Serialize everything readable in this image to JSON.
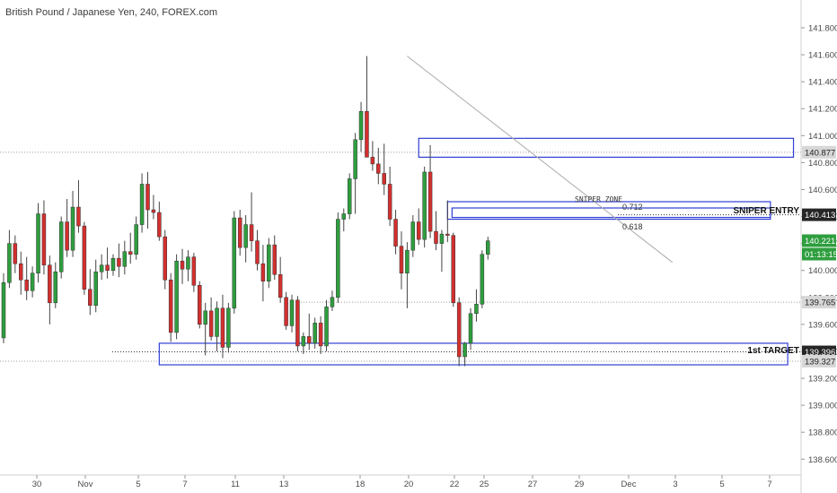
{
  "header": {
    "symbol_title": "British Pound / Japanese Yen, 240, FOREX.com"
  },
  "colors": {
    "up": "#26a69a",
    "up_body": "#2e9e3e",
    "down": "#d32f2f",
    "wick": "#555555",
    "zone": "#2f3fd6",
    "trendline": "#aaaaaa",
    "label_dark": "#262626",
    "label_grey": "#9e9e9e",
    "label_green": "#2e9e3e"
  },
  "chart_data": {
    "type": "candlestick",
    "title": "British Pound / Japanese Yen, 240, FOREX.com",
    "timeframe": "240",
    "ylim": [
      138.5,
      142.1
    ],
    "y_ticks": [
      "141.800",
      "141.600",
      "141.400",
      "141.200",
      "141.000",
      "140.800",
      "140.600",
      "140.400",
      "140.200",
      "140.000",
      "139.800",
      "139.600",
      "139.400",
      "139.200",
      "139.000",
      "138.800",
      "138.600"
    ],
    "x_ticks": [
      "30",
      "Nov",
      "5",
      "7",
      "11",
      "13",
      "18",
      "20",
      "22",
      "25",
      "27",
      "29",
      "Dec",
      "3",
      "5",
      "7"
    ],
    "price_labels": [
      {
        "text": "140.877",
        "value": 140.877,
        "style": "grey"
      },
      {
        "text": "140.413",
        "value": 140.413,
        "style": "dark"
      },
      {
        "text": "140.221",
        "value": 140.221,
        "style": "green"
      },
      {
        "text": "01:13:15",
        "value": 140.15,
        "style": "green"
      },
      {
        "text": "139.765",
        "value": 139.765,
        "style": "grey"
      },
      {
        "text": "139.396",
        "value": 139.396,
        "style": "dark"
      },
      {
        "text": "139.327",
        "value": 139.327,
        "style": "grey"
      }
    ],
    "annotations": {
      "sniper_zone_label": "SNIPER ZONE",
      "fib_712": "0.712",
      "fib_618": "0.618",
      "sniper_entry": "SNIPER ENTRY",
      "first_target": "1st TARGET"
    },
    "zones": [
      {
        "name": "resistance",
        "start_index": 72,
        "end_index": 137,
        "y_low": 140.84,
        "y_high": 140.98
      },
      {
        "name": "sniper zone",
        "start_index": 77,
        "end_index": 133,
        "y_low": 140.38,
        "y_high": 140.51
      },
      {
        "name": "target",
        "start_index": 27,
        "end_index": 136,
        "y_low": 139.3,
        "y_high": 139.46
      }
    ],
    "trendline": {
      "from_index": 70,
      "from_value": 141.59,
      "to_index": 116,
      "to_value": 140.06
    },
    "candles": [
      {
        "o": 139.5,
        "h": 139.98,
        "l": 139.46,
        "c": 139.91
      },
      {
        "o": 139.91,
        "h": 140.3,
        "l": 139.87,
        "c": 140.2
      },
      {
        "o": 140.2,
        "h": 140.26,
        "l": 139.98,
        "c": 140.05
      },
      {
        "o": 140.05,
        "h": 140.14,
        "l": 139.82,
        "c": 139.93
      },
      {
        "o": 139.93,
        "h": 140.1,
        "l": 139.78,
        "c": 139.85
      },
      {
        "o": 139.85,
        "h": 140.03,
        "l": 139.8,
        "c": 139.98
      },
      {
        "o": 139.98,
        "h": 140.5,
        "l": 139.91,
        "c": 140.42
      },
      {
        "o": 140.42,
        "h": 140.52,
        "l": 139.97,
        "c": 140.04
      },
      {
        "o": 140.04,
        "h": 140.11,
        "l": 139.6,
        "c": 139.76
      },
      {
        "o": 139.76,
        "h": 140.06,
        "l": 139.72,
        "c": 139.99
      },
      {
        "o": 139.99,
        "h": 140.4,
        "l": 139.94,
        "c": 140.36
      },
      {
        "o": 140.36,
        "h": 140.53,
        "l": 140.1,
        "c": 140.15
      },
      {
        "o": 140.15,
        "h": 140.59,
        "l": 140.1,
        "c": 140.47
      },
      {
        "o": 140.47,
        "h": 140.67,
        "l": 140.28,
        "c": 140.33
      },
      {
        "o": 140.33,
        "h": 140.36,
        "l": 139.82,
        "c": 139.86
      },
      {
        "o": 139.86,
        "h": 140.01,
        "l": 139.67,
        "c": 139.74
      },
      {
        "o": 139.74,
        "h": 140.08,
        "l": 139.69,
        "c": 139.99
      },
      {
        "o": 139.99,
        "h": 140.12,
        "l": 139.93,
        "c": 140.04
      },
      {
        "o": 140.04,
        "h": 140.17,
        "l": 139.94,
        "c": 140.0
      },
      {
        "o": 140.0,
        "h": 140.12,
        "l": 139.96,
        "c": 140.09
      },
      {
        "o": 140.09,
        "h": 140.2,
        "l": 139.95,
        "c": 140.03
      },
      {
        "o": 140.03,
        "h": 140.22,
        "l": 139.97,
        "c": 140.14
      },
      {
        "o": 140.14,
        "h": 140.28,
        "l": 140.05,
        "c": 140.12
      },
      {
        "o": 140.12,
        "h": 140.4,
        "l": 140.08,
        "c": 140.34
      },
      {
        "o": 140.34,
        "h": 140.72,
        "l": 140.28,
        "c": 140.64
      },
      {
        "o": 140.64,
        "h": 140.73,
        "l": 140.31,
        "c": 140.45
      },
      {
        "o": 140.45,
        "h": 140.56,
        "l": 140.38,
        "c": 140.43
      },
      {
        "o": 140.43,
        "h": 140.51,
        "l": 140.22,
        "c": 140.25
      },
      {
        "o": 140.25,
        "h": 140.3,
        "l": 139.86,
        "c": 139.93
      },
      {
        "o": 139.93,
        "h": 139.98,
        "l": 139.47,
        "c": 139.54
      },
      {
        "o": 139.54,
        "h": 140.12,
        "l": 139.49,
        "c": 140.07
      },
      {
        "o": 140.07,
        "h": 140.16,
        "l": 139.9,
        "c": 140.01
      },
      {
        "o": 140.01,
        "h": 140.15,
        "l": 139.92,
        "c": 140.1
      },
      {
        "o": 140.1,
        "h": 140.13,
        "l": 139.84,
        "c": 139.89
      },
      {
        "o": 139.89,
        "h": 139.92,
        "l": 139.57,
        "c": 139.6
      },
      {
        "o": 139.6,
        "h": 139.76,
        "l": 139.37,
        "c": 139.7
      },
      {
        "o": 139.7,
        "h": 139.8,
        "l": 139.48,
        "c": 139.51
      },
      {
        "o": 139.51,
        "h": 139.77,
        "l": 139.4,
        "c": 139.72
      },
      {
        "o": 139.72,
        "h": 139.82,
        "l": 139.35,
        "c": 139.43
      },
      {
        "o": 139.43,
        "h": 139.76,
        "l": 139.39,
        "c": 139.72
      },
      {
        "o": 139.72,
        "h": 140.44,
        "l": 139.68,
        "c": 140.39
      },
      {
        "o": 140.39,
        "h": 140.45,
        "l": 140.11,
        "c": 140.17
      },
      {
        "o": 140.17,
        "h": 140.41,
        "l": 140.06,
        "c": 140.34
      },
      {
        "o": 140.34,
        "h": 140.58,
        "l": 140.14,
        "c": 140.22
      },
      {
        "o": 140.22,
        "h": 140.3,
        "l": 140.0,
        "c": 140.05
      },
      {
        "o": 140.05,
        "h": 140.19,
        "l": 139.77,
        "c": 139.92
      },
      {
        "o": 139.92,
        "h": 140.24,
        "l": 139.87,
        "c": 140.19
      },
      {
        "o": 140.19,
        "h": 140.26,
        "l": 139.93,
        "c": 139.97
      },
      {
        "o": 139.97,
        "h": 140.1,
        "l": 139.76,
        "c": 139.8
      },
      {
        "o": 139.8,
        "h": 139.84,
        "l": 139.56,
        "c": 139.59
      },
      {
        "o": 139.59,
        "h": 139.82,
        "l": 139.54,
        "c": 139.78
      },
      {
        "o": 139.78,
        "h": 139.81,
        "l": 139.4,
        "c": 139.44
      },
      {
        "o": 139.44,
        "h": 139.54,
        "l": 139.38,
        "c": 139.51
      },
      {
        "o": 139.51,
        "h": 139.68,
        "l": 139.41,
        "c": 139.46
      },
      {
        "o": 139.46,
        "h": 139.65,
        "l": 139.42,
        "c": 139.61
      },
      {
        "o": 139.61,
        "h": 139.66,
        "l": 139.38,
        "c": 139.44
      },
      {
        "o": 139.44,
        "h": 139.78,
        "l": 139.4,
        "c": 139.73
      },
      {
        "o": 139.73,
        "h": 139.85,
        "l": 139.7,
        "c": 139.8
      },
      {
        "o": 139.8,
        "h": 140.43,
        "l": 139.76,
        "c": 140.38
      },
      {
        "o": 140.38,
        "h": 140.46,
        "l": 140.29,
        "c": 140.42
      },
      {
        "o": 140.42,
        "h": 140.72,
        "l": 140.38,
        "c": 140.68
      },
      {
        "o": 140.68,
        "h": 141.02,
        "l": 140.42,
        "c": 140.97
      },
      {
        "o": 140.97,
        "h": 141.25,
        "l": 140.88,
        "c": 141.18
      },
      {
        "o": 141.18,
        "h": 141.59,
        "l": 140.86,
        "c": 140.84
      },
      {
        "o": 140.84,
        "h": 140.96,
        "l": 140.74,
        "c": 140.79
      },
      {
        "o": 140.79,
        "h": 140.91,
        "l": 140.64,
        "c": 140.72
      },
      {
        "o": 140.72,
        "h": 140.94,
        "l": 140.56,
        "c": 140.64
      },
      {
        "o": 140.64,
        "h": 140.77,
        "l": 140.33,
        "c": 140.38
      },
      {
        "o": 140.38,
        "h": 140.45,
        "l": 140.12,
        "c": 140.18
      },
      {
        "o": 140.18,
        "h": 140.29,
        "l": 139.86,
        "c": 139.98
      },
      {
        "o": 139.98,
        "h": 140.21,
        "l": 139.72,
        "c": 140.15
      },
      {
        "o": 140.15,
        "h": 140.41,
        "l": 140.1,
        "c": 140.36
      },
      {
        "o": 140.36,
        "h": 140.46,
        "l": 140.19,
        "c": 140.23
      },
      {
        "o": 140.23,
        "h": 140.77,
        "l": 140.17,
        "c": 140.73
      },
      {
        "o": 140.73,
        "h": 140.93,
        "l": 140.24,
        "c": 140.29
      },
      {
        "o": 140.29,
        "h": 140.44,
        "l": 140.15,
        "c": 140.2
      },
      {
        "o": 140.2,
        "h": 140.3,
        "l": 139.99,
        "c": 140.27
      },
      {
        "o": 140.27,
        "h": 140.52,
        "l": 140.21,
        "c": 140.26
      },
      {
        "o": 140.26,
        "h": 140.28,
        "l": 139.73,
        "c": 139.76
      },
      {
        "o": 139.76,
        "h": 139.8,
        "l": 139.29,
        "c": 139.36
      },
      {
        "o": 139.36,
        "h": 139.47,
        "l": 139.29,
        "c": 139.46
      },
      {
        "o": 139.46,
        "h": 139.72,
        "l": 139.41,
        "c": 139.68
      },
      {
        "o": 139.68,
        "h": 139.86,
        "l": 139.62,
        "c": 139.75
      },
      {
        "o": 139.75,
        "h": 140.15,
        "l": 139.72,
        "c": 140.12
      },
      {
        "o": 140.12,
        "h": 140.25,
        "l": 140.08,
        "c": 140.22
      }
    ]
  }
}
